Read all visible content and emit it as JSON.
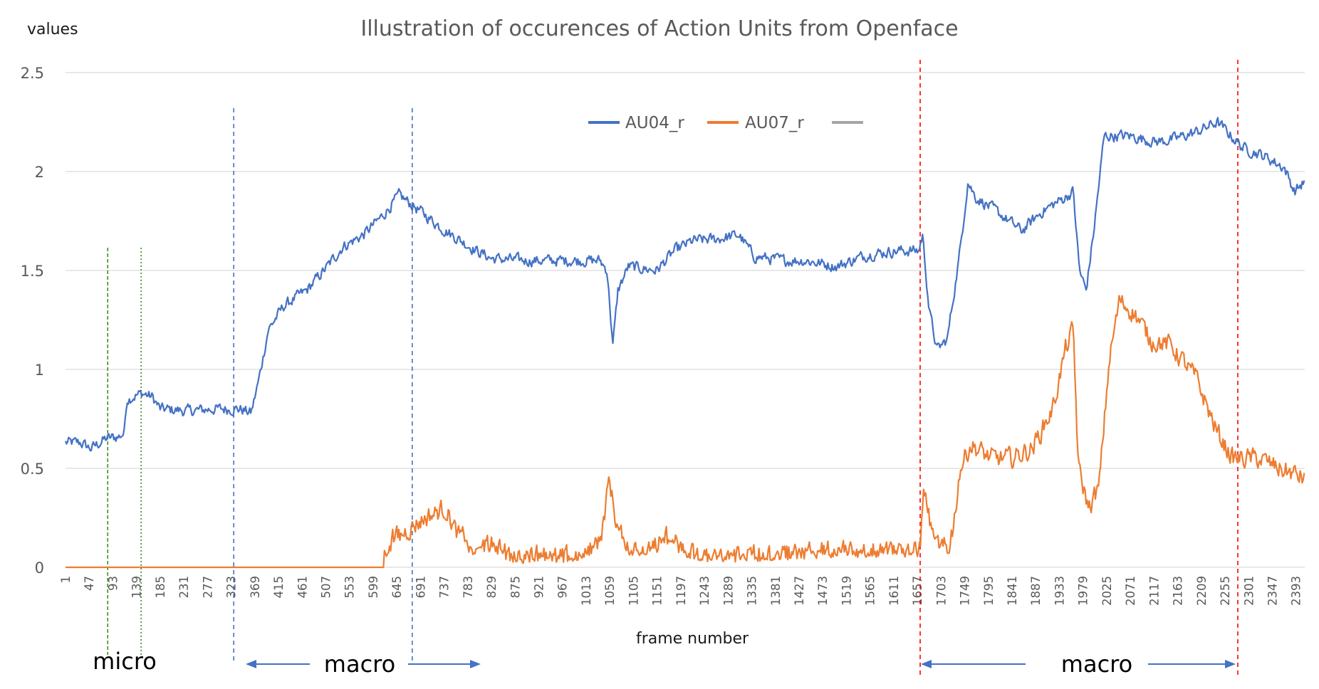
{
  "chart_data": {
    "type": "line",
    "title": "Illustration of occurences of Action Units from Openface",
    "ylabel": "values",
    "xlabel": "frame number",
    "ylim": [
      0,
      2.5
    ],
    "y_ticks": [
      "0",
      "0.5",
      "1",
      "1.5",
      "2",
      "2.5"
    ],
    "x_ticks": [
      "1",
      "47",
      "93",
      "139",
      "185",
      "231",
      "277",
      "323",
      "369",
      "415",
      "461",
      "507",
      "553",
      "599",
      "645",
      "691",
      "737",
      "783",
      "829",
      "875",
      "921",
      "967",
      "1013",
      "1059",
      "1105",
      "1151",
      "1197",
      "1243",
      "1289",
      "1335",
      "1381",
      "1427",
      "1473",
      "1519",
      "1565",
      "1611",
      "1657",
      "1703",
      "1749",
      "1795",
      "1841",
      "1887",
      "1933",
      "1979",
      "2025",
      "2071",
      "2117",
      "2163",
      "2209",
      "2255",
      "2301",
      "2347",
      "2393"
    ],
    "x_range": [
      1,
      2410
    ],
    "legend": [
      "AU04_r",
      "AU07_r",
      ""
    ],
    "legend_position": "top-center",
    "series": [
      {
        "name": "AU04_r",
        "color": "#4472c4",
        "noise": 0.045,
        "points": [
          [
            1,
            0.63
          ],
          [
            30,
            0.63
          ],
          [
            50,
            0.6
          ],
          [
            80,
            0.65
          ],
          [
            105,
            0.66
          ],
          [
            115,
            0.68
          ],
          [
            120,
            0.85
          ],
          [
            150,
            0.88
          ],
          [
            170,
            0.86
          ],
          [
            185,
            0.8
          ],
          [
            240,
            0.79
          ],
          [
            290,
            0.8
          ],
          [
            340,
            0.8
          ],
          [
            362,
            0.78
          ],
          [
            377,
            0.95
          ],
          [
            395,
            1.2
          ],
          [
            425,
            1.32
          ],
          [
            470,
            1.4
          ],
          [
            510,
            1.52
          ],
          [
            540,
            1.62
          ],
          [
            580,
            1.68
          ],
          [
            615,
            1.77
          ],
          [
            650,
            1.88
          ],
          [
            690,
            1.8
          ],
          [
            740,
            1.7
          ],
          [
            800,
            1.6
          ],
          [
            830,
            1.56
          ],
          [
            900,
            1.55
          ],
          [
            1000,
            1.55
          ],
          [
            1040,
            1.55
          ],
          [
            1054,
            1.5
          ],
          [
            1065,
            1.12
          ],
          [
            1075,
            1.4
          ],
          [
            1095,
            1.52
          ],
          [
            1150,
            1.5
          ],
          [
            1185,
            1.6
          ],
          [
            1220,
            1.65
          ],
          [
            1270,
            1.66
          ],
          [
            1310,
            1.68
          ],
          [
            1340,
            1.57
          ],
          [
            1400,
            1.55
          ],
          [
            1440,
            1.55
          ],
          [
            1500,
            1.52
          ],
          [
            1560,
            1.58
          ],
          [
            1620,
            1.6
          ],
          [
            1660,
            1.6
          ],
          [
            1667,
            1.68
          ],
          [
            1680,
            1.3
          ],
          [
            1695,
            1.1
          ],
          [
            1715,
            1.15
          ],
          [
            1740,
            1.6
          ],
          [
            1755,
            1.95
          ],
          [
            1770,
            1.87
          ],
          [
            1810,
            1.8
          ],
          [
            1860,
            1.7
          ],
          [
            1900,
            1.8
          ],
          [
            1945,
            1.87
          ],
          [
            1960,
            1.9
          ],
          [
            1972,
            1.5
          ],
          [
            1985,
            1.4
          ],
          [
            2000,
            1.7
          ],
          [
            2020,
            2.18
          ],
          [
            2070,
            2.18
          ],
          [
            2120,
            2.15
          ],
          [
            2150,
            2.16
          ],
          [
            2200,
            2.2
          ],
          [
            2240,
            2.25
          ],
          [
            2290,
            2.12
          ],
          [
            2330,
            2.08
          ],
          [
            2370,
            2.02
          ],
          [
            2390,
            1.9
          ],
          [
            2410,
            1.95
          ]
        ]
      },
      {
        "name": "AU07_r",
        "color": "#ed7d31",
        "noise": 0.08,
        "points": [
          [
            1,
            0
          ],
          [
            620,
            0
          ],
          [
            640,
            0.12
          ],
          [
            660,
            0.18
          ],
          [
            700,
            0.25
          ],
          [
            740,
            0.3
          ],
          [
            760,
            0.18
          ],
          [
            790,
            0.05
          ],
          [
            830,
            0.08
          ],
          [
            870,
            0.02
          ],
          [
            1000,
            0.02
          ],
          [
            1040,
            0.1
          ],
          [
            1058,
            0.45
          ],
          [
            1070,
            0.25
          ],
          [
            1090,
            0.05
          ],
          [
            1140,
            0.05
          ],
          [
            1170,
            0.12
          ],
          [
            1200,
            0.05
          ],
          [
            1260,
            0.02
          ],
          [
            1500,
            0.05
          ],
          [
            1600,
            0.05
          ],
          [
            1660,
            0.05
          ],
          [
            1670,
            0.4
          ],
          [
            1690,
            0.1
          ],
          [
            1720,
            0.05
          ],
          [
            1740,
            0.5
          ],
          [
            1760,
            0.62
          ],
          [
            1800,
            0.55
          ],
          [
            1840,
            0.55
          ],
          [
            1880,
            0.6
          ],
          [
            1920,
            0.8
          ],
          [
            1945,
            1.1
          ],
          [
            1960,
            1.2
          ],
          [
            1970,
            0.5
          ],
          [
            1990,
            0.3
          ],
          [
            2010,
            0.4
          ],
          [
            2030,
            1.05
          ],
          [
            2050,
            1.35
          ],
          [
            2080,
            1.28
          ],
          [
            2110,
            1.15
          ],
          [
            2150,
            1.12
          ],
          [
            2200,
            0.95
          ],
          [
            2240,
            0.68
          ],
          [
            2270,
            0.55
          ],
          [
            2320,
            0.55
          ],
          [
            2360,
            0.5
          ],
          [
            2410,
            0.45
          ]
        ]
      }
    ],
    "annotations": {
      "micro_label": "micro",
      "macro_left_label": "macro",
      "macro_right_label": "macro"
    }
  }
}
